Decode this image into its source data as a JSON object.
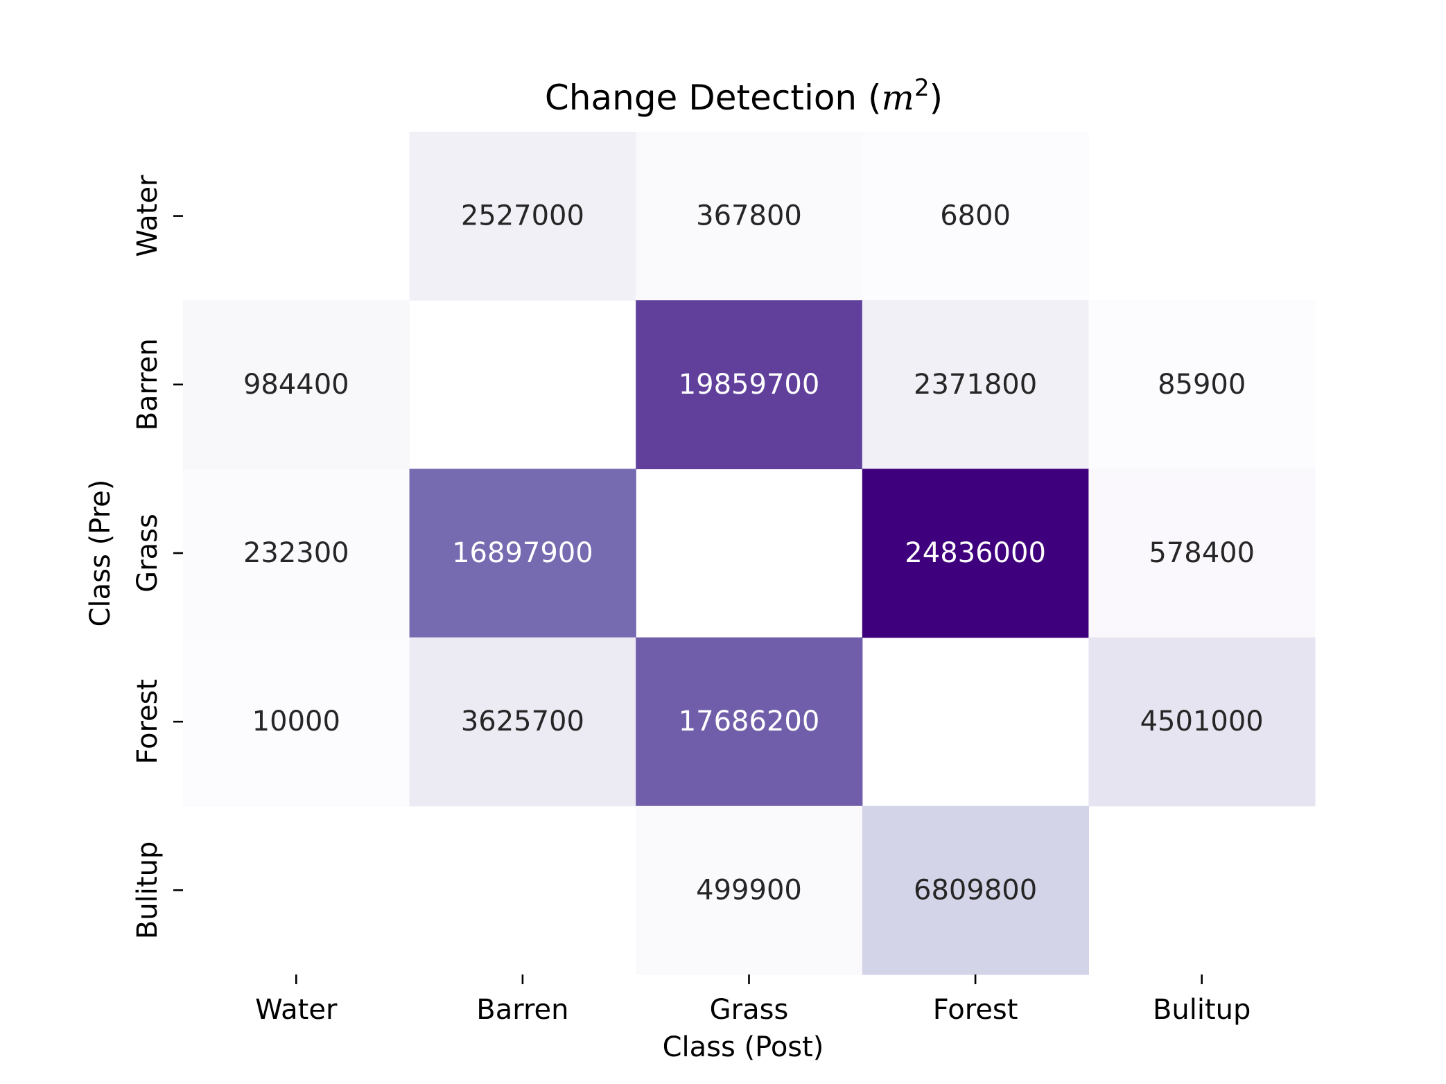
{
  "chart_data": {
    "type": "heatmap",
    "title": {
      "prefix": "Change Detection (",
      "variable": "m",
      "exponent": "2",
      "suffix": ")"
    },
    "xlabel": "Class (Post)",
    "ylabel": "Class (Pre)",
    "x_categories": [
      "Water",
      "Barren",
      "Grass",
      "Forest",
      "Bulitup"
    ],
    "y_categories": [
      "Water",
      "Barren",
      "Grass",
      "Forest",
      "Bulitup"
    ],
    "values": [
      [
        null,
        2527000,
        367800,
        6800,
        null
      ],
      [
        984400,
        null,
        19859700,
        2371800,
        85900
      ],
      [
        232300,
        16897900,
        null,
        24836000,
        578400
      ],
      [
        10000,
        3625700,
        17686200,
        null,
        4501000
      ],
      [
        null,
        null,
        499900,
        6809800,
        null
      ]
    ],
    "colormap": "Purples",
    "vmin": 6800,
    "vmax": 24836000,
    "colorbar": false,
    "grid": false
  }
}
